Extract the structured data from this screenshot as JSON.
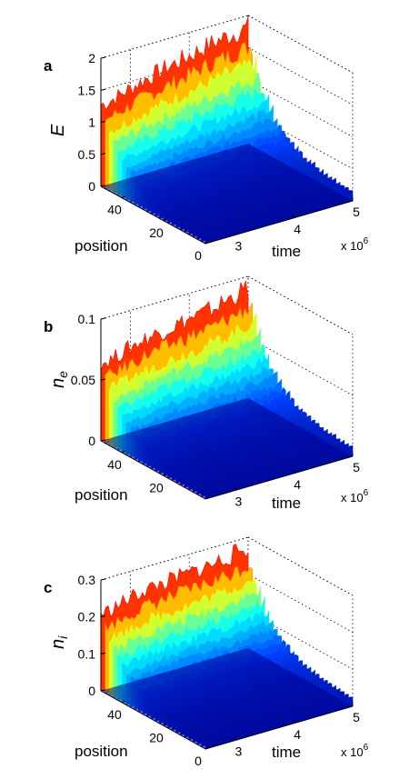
{
  "chart_data": [
    {
      "type": "area",
      "panel_label": "a",
      "zlabel": "E",
      "xlabel": "time",
      "ylabel": "position",
      "x_exponent_label": "x 10",
      "x_exponent": "6",
      "z_ticks": [
        "0",
        "0.5",
        "1",
        "1.5",
        "2"
      ],
      "zlim": [
        0,
        2
      ],
      "x_ticks": [
        "3",
        "4",
        "5"
      ],
      "xlim": [
        2.5,
        5
      ],
      "y_ticks": [
        "0",
        "20",
        "40"
      ],
      "ylim": [
        0,
        50
      ],
      "peak_values": [
        1.4,
        1.6,
        1.75,
        1.9,
        2.0
      ],
      "peak_times": [
        2.6,
        3.2,
        3.8,
        4.4,
        5.0
      ],
      "colormap": [
        "#00008f",
        "#0040ff",
        "#00ffff",
        "#ffff00",
        "#ff0000"
      ]
    },
    {
      "type": "area",
      "panel_label": "b",
      "zlabel": "n",
      "zlabel_sub": "e",
      "xlabel": "time",
      "ylabel": "position",
      "x_exponent_label": "x 10",
      "x_exponent": "6",
      "z_ticks": [
        "0",
        "0.05",
        "0.1"
      ],
      "zlim": [
        0,
        0.1
      ],
      "x_ticks": [
        "3",
        "4",
        "5"
      ],
      "xlim": [
        2.5,
        5
      ],
      "y_ticks": [
        "20",
        "40"
      ],
      "ylim": [
        0,
        50
      ],
      "peak_values": [
        0.07,
        0.08,
        0.085,
        0.09,
        0.1
      ],
      "peak_times": [
        2.6,
        3.2,
        3.8,
        4.4,
        5.0
      ],
      "colormap": [
        "#00008f",
        "#0040ff",
        "#00ffff",
        "#ffff00",
        "#ff0000"
      ]
    },
    {
      "type": "area",
      "panel_label": "c",
      "zlabel": "n",
      "zlabel_sub": "i",
      "xlabel": "time",
      "ylabel": "position",
      "x_exponent_label": "x 10",
      "x_exponent": "6",
      "z_ticks": [
        "0",
        "0.1",
        "0.2",
        "0.3"
      ],
      "zlim": [
        0,
        0.3
      ],
      "x_ticks": [
        "3",
        "4",
        "5"
      ],
      "xlim": [
        2.5,
        5
      ],
      "y_ticks": [
        "0",
        "20",
        "40"
      ],
      "ylim": [
        0,
        50
      ],
      "peak_values": [
        0.23,
        0.26,
        0.27,
        0.28,
        0.3
      ],
      "peak_times": [
        2.6,
        3.2,
        3.8,
        4.4,
        5.0
      ],
      "colormap": [
        "#00008f",
        "#0040ff",
        "#00ffff",
        "#ffff00",
        "#ff0000"
      ]
    }
  ]
}
